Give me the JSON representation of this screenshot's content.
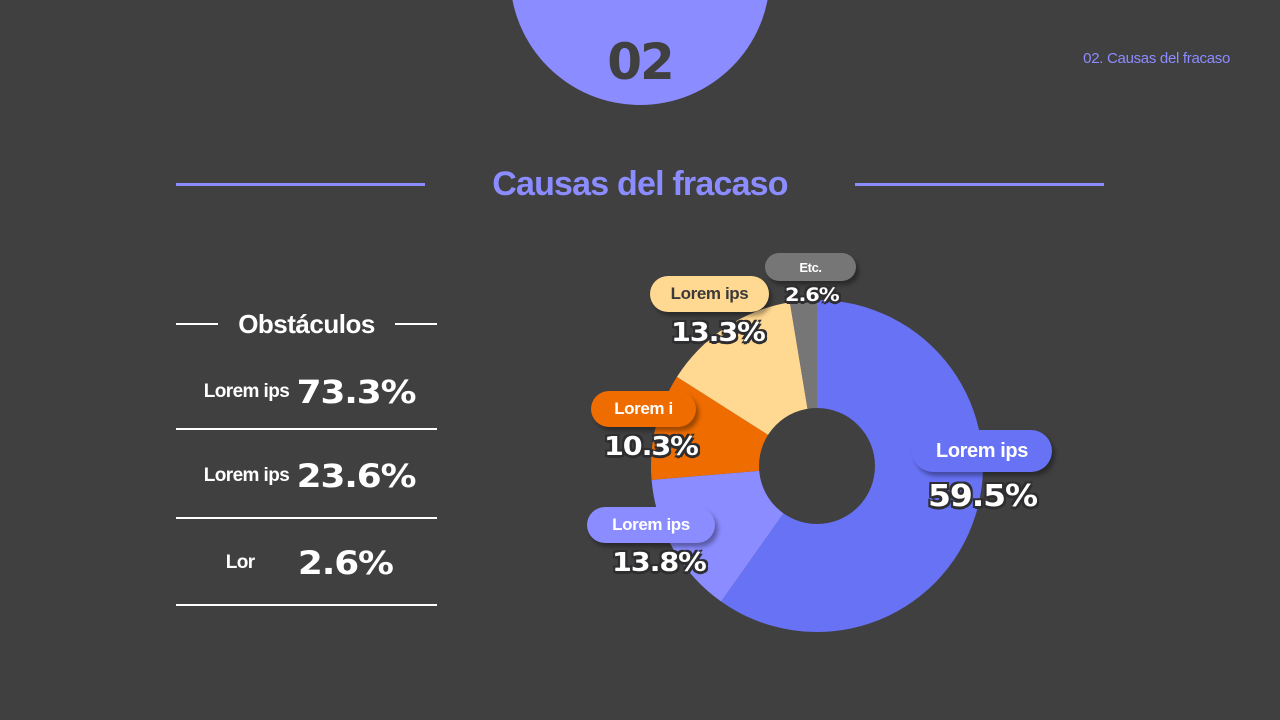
{
  "header": {
    "section_number": "02",
    "breadcrumb": "02. Causas del fracaso",
    "title": "Causas del fracaso",
    "accent_color": "#8b8cff",
    "background_color": "#414041"
  },
  "obstacles": {
    "title": "Obstáculos",
    "rows": [
      {
        "label": "Lorem ips",
        "value": "73.3%"
      },
      {
        "label": "Lorem ips",
        "value": "23.6%"
      },
      {
        "label": "Lor",
        "value": "2.6%"
      }
    ]
  },
  "chart_data": {
    "type": "pie",
    "subtype": "donut",
    "title": "",
    "start_angle": "12 o'clock, clockwise",
    "categories": [
      "Lorem ips",
      "Lorem ips",
      "Lorem i",
      "Lorem ips",
      "Etc."
    ],
    "values": [
      59.5,
      13.8,
      10.3,
      13.3,
      2.6
    ],
    "labels": [
      "59.5%",
      "13.8%",
      "10.3%",
      "13.3%",
      "2.6%"
    ],
    "colors": [
      "#6872f5",
      "#8b8cff",
      "#ef6c00",
      "#ffd892",
      "#767676"
    ],
    "legend": "none (callout pills per slice)"
  }
}
